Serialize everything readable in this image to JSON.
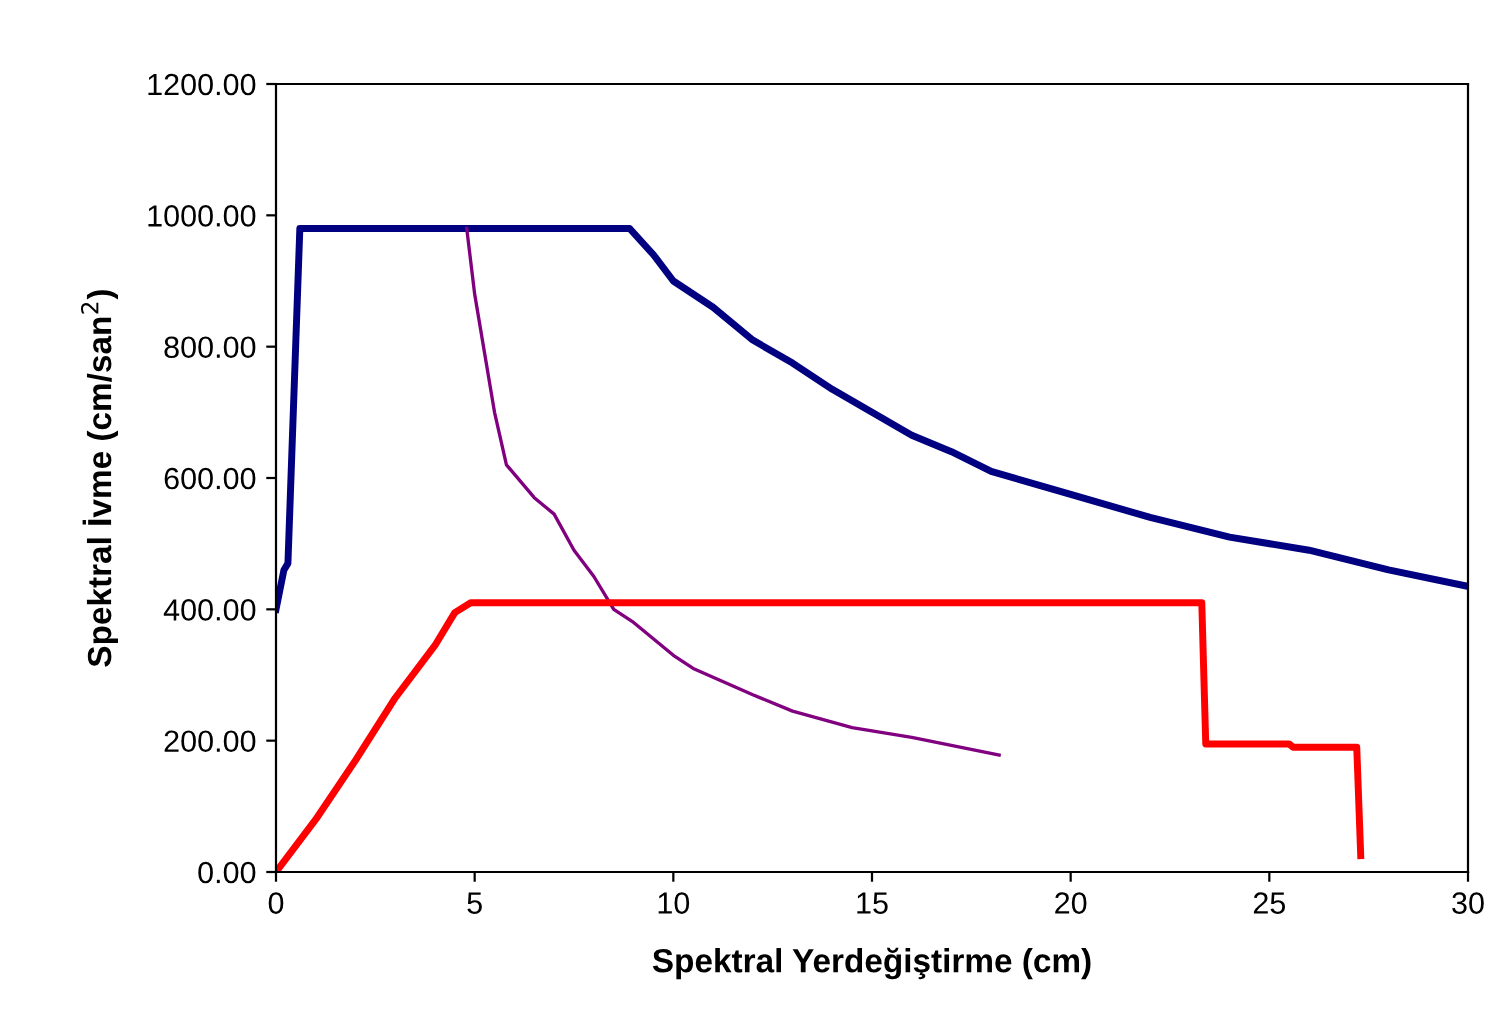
{
  "chart_data": {
    "type": "line",
    "xlabel": "Spektral Yerdeğiştirme (cm)",
    "ylabel": "Spektral İvme (cm/san$^{2}$)",
    "xlim": [
      0,
      30
    ],
    "xticks": [
      0,
      5,
      10,
      15,
      20,
      25,
      30
    ],
    "ylim": [
      0,
      1200
    ],
    "yticks": [
      {
        "value": 0,
        "label": "0.00"
      },
      {
        "value": 200,
        "label": "200.00"
      },
      {
        "value": 400,
        "label": "400.00"
      },
      {
        "value": 600,
        "label": "600.00"
      },
      {
        "value": 800,
        "label": "800.00"
      },
      {
        "value": 1000,
        "label": "1000.00"
      },
      {
        "value": 1200,
        "label": "1200.00"
      }
    ],
    "grid": false,
    "legend": false,
    "series": [
      {
        "color": "#000080",
        "x": [
          0,
          0.1,
          0.2,
          0.3,
          0.6,
          8.9,
          9.5,
          10,
          11,
          12,
          13,
          14,
          15,
          16,
          17,
          18,
          20,
          22,
          24,
          26,
          28,
          30
        ],
        "values": [
          400,
          430,
          460,
          470,
          980,
          980,
          940,
          900,
          860,
          810,
          775,
          735,
          700,
          665,
          640,
          610,
          575,
          540,
          510,
          490,
          460,
          435
        ]
      },
      {
        "color": "#800080",
        "x": [
          4.8,
          5,
          5.5,
          5.8,
          6.5,
          7,
          7.5,
          8,
          8.5,
          9,
          10,
          10.5,
          12,
          13,
          14.5,
          16,
          18.2
        ],
        "values": [
          980,
          880,
          700,
          620,
          570,
          545,
          490,
          450,
          400,
          380,
          330,
          310,
          270,
          245,
          220,
          205,
          178
        ]
      },
      {
        "color": "#ff0000",
        "x": [
          0,
          1,
          2,
          3,
          4,
          4.5,
          4.9,
          23.3,
          23.4,
          25.5,
          25.6,
          27.2,
          27.3
        ],
        "values": [
          0,
          80,
          170,
          265,
          345,
          395,
          410,
          410,
          195,
          195,
          190,
          190,
          25
        ]
      }
    ]
  }
}
